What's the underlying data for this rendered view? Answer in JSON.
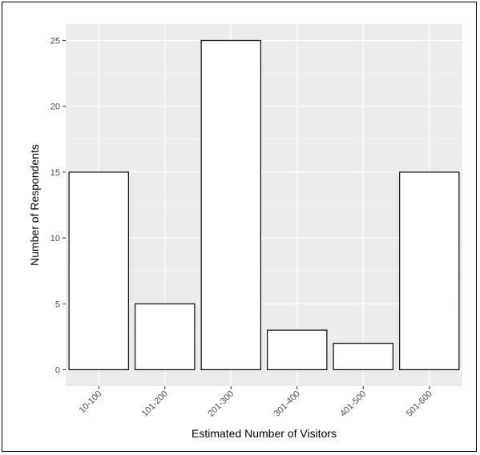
{
  "chart_data": {
    "type": "bar",
    "categories": [
      "10-100",
      "101-200",
      "201-300",
      "301-400",
      "401-500",
      "501-600"
    ],
    "values": [
      15,
      5,
      25,
      3,
      2,
      15
    ],
    "xlabel": "Estimated Number of Visitors",
    "ylabel": "Number of Respondents",
    "ylim": [
      -1.25,
      26.25
    ],
    "yticks": [
      0,
      5,
      10,
      15,
      20,
      25
    ],
    "grid": true,
    "colors": {
      "panel": "#ebebeb",
      "grid_major": "#ffffff",
      "bar_fill": "#ffffff",
      "bar_stroke": "#1a1a1a",
      "tick_text": "#4d4d4d"
    }
  }
}
